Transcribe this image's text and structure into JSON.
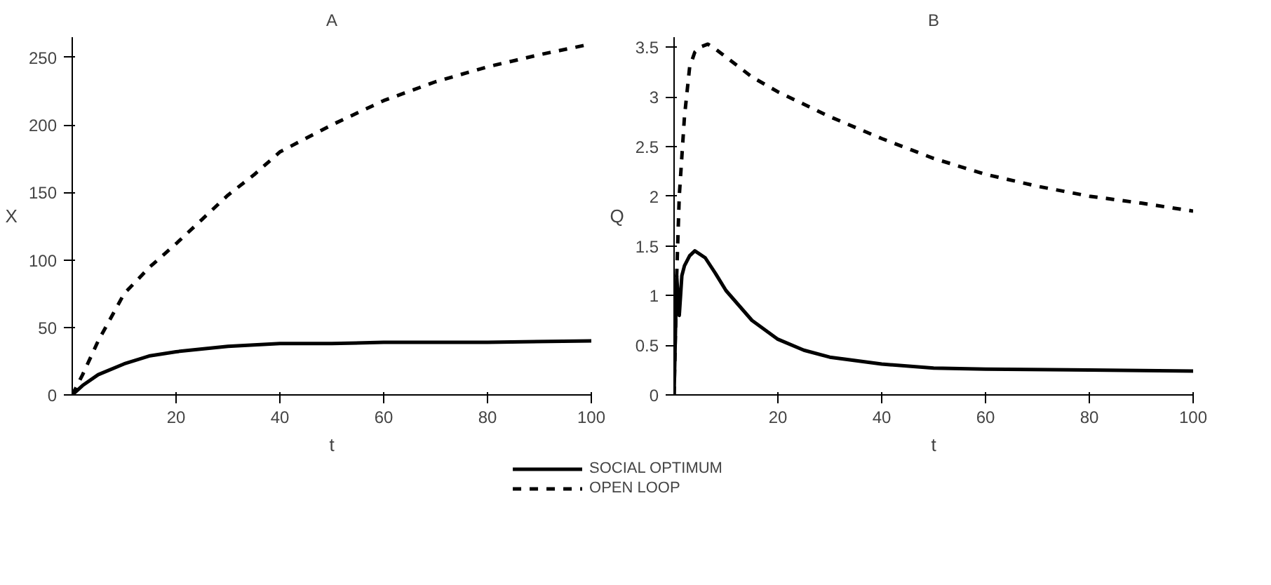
{
  "chart_data": [
    {
      "type": "line",
      "title": "A",
      "xlabel": "t",
      "ylabel": "X",
      "xlim": [
        0,
        100
      ],
      "ylim": [
        0,
        265
      ],
      "xticks": [
        20,
        40,
        60,
        80,
        100
      ],
      "yticks": [
        0,
        50,
        100,
        150,
        200,
        250
      ],
      "grid": false,
      "series": [
        {
          "color": "#000000",
          "line_style": "solid",
          "x": [
            0,
            2,
            5,
            10,
            15,
            20,
            25,
            30,
            40,
            50,
            60,
            80,
            100
          ],
          "values": [
            0,
            7,
            15,
            23,
            29,
            32,
            34,
            36,
            38,
            38,
            39,
            39,
            40
          ]
        },
        {
          "color": "#000000",
          "line_style": "dashed",
          "x": [
            0,
            2,
            5,
            10,
            15,
            20,
            25,
            30,
            35,
            40,
            50,
            60,
            70,
            80,
            90,
            100
          ],
          "values": [
            0,
            15,
            40,
            75,
            95,
            112,
            130,
            148,
            163,
            180,
            200,
            218,
            232,
            243,
            252,
            260
          ]
        }
      ]
    },
    {
      "type": "line",
      "title": "B",
      "xlabel": "t",
      "ylabel": "Q",
      "xlim": [
        0,
        100
      ],
      "ylim": [
        0,
        3.6
      ],
      "xticks": [
        20,
        40,
        60,
        80,
        100
      ],
      "yticks": [
        0,
        0.5,
        1,
        1.5,
        2,
        2.5,
        3,
        3.5
      ],
      "grid": false,
      "legend": "bottom",
      "series": [
        {
          "name": "SOCIAL OPTIMUM",
          "color": "#000000",
          "line_style": "solid",
          "x": [
            0,
            0.5,
            1,
            1.5,
            2,
            3,
            4,
            6,
            8,
            10,
            15,
            20,
            25,
            30,
            40,
            50,
            60,
            80,
            100
          ],
          "values": [
            0,
            1.2,
            0.8,
            1.2,
            1.3,
            1.4,
            1.45,
            1.38,
            1.22,
            1.05,
            0.75,
            0.56,
            0.45,
            0.38,
            0.31,
            0.27,
            0.26,
            0.25,
            0.24
          ]
        },
        {
          "name": "OPEN LOOP",
          "color": "#000000",
          "line_style": "dashed",
          "x": [
            0,
            0.5,
            1,
            2,
            3,
            4,
            5,
            6.5,
            8,
            10,
            15,
            20,
            30,
            40,
            50,
            60,
            70,
            80,
            90,
            100
          ],
          "values": [
            0,
            1.2,
            2.0,
            2.8,
            3.3,
            3.45,
            3.5,
            3.53,
            3.48,
            3.4,
            3.2,
            3.05,
            2.8,
            2.58,
            2.38,
            2.22,
            2.1,
            2.0,
            1.93,
            1.85
          ]
        }
      ]
    }
  ]
}
